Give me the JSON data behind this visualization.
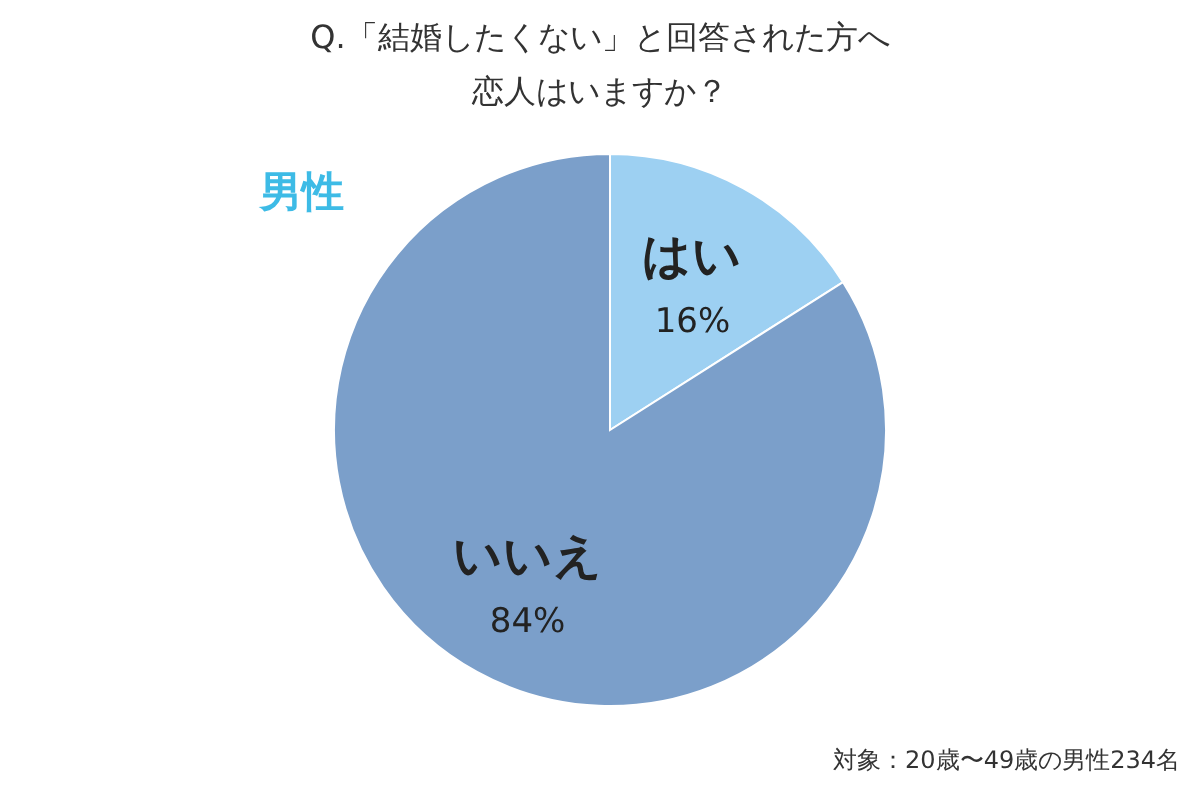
{
  "chart_data": {
    "type": "pie",
    "title": "Q.「結婚したくない」と回答された方へ恋人はいますか？",
    "subtitle": "男性",
    "categories": [
      "はい",
      "いいえ"
    ],
    "values": [
      16,
      84
    ],
    "colors": [
      "#9dd0f2",
      "#7b9fca"
    ],
    "value_labels": [
      "16%",
      "84%"
    ],
    "annotations": [
      "対象：20歳〜49歳の男性234名"
    ]
  }
}
